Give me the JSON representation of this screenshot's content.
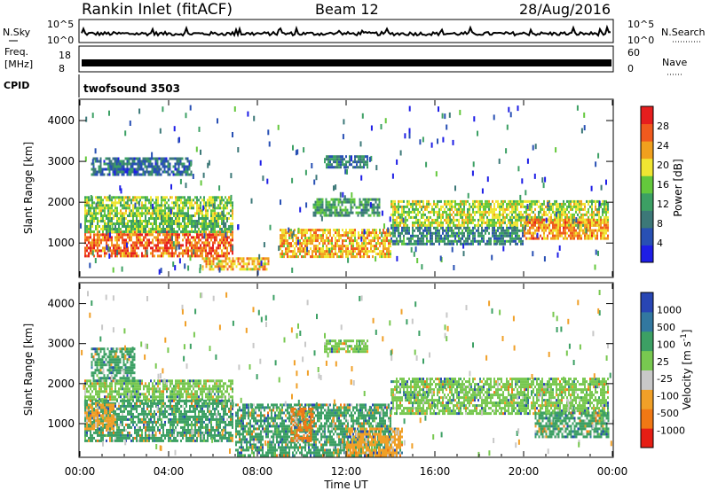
{
  "header": {
    "title": "Rankin Inlet (fitACF)",
    "beam": "Beam 12",
    "date": "28/Aug/2016"
  },
  "strip": {
    "nsky_label": "N.Sky",
    "nsky_ticks": [
      "10^5",
      "10^0"
    ],
    "nsearch_label": "N.Search",
    "freq_label_line1": "Freq.",
    "freq_label_line2": "[MHz]",
    "freq_ticks": [
      "18",
      "8"
    ],
    "nave_label": "Nave",
    "nave_ticks": [
      "60",
      "0"
    ],
    "cpid_label": "CPID",
    "cpid_text": "twofsound 3503"
  },
  "x_axis": {
    "label": "Time UT",
    "ticks": [
      "00:00",
      "04:00",
      "08:00",
      "12:00",
      "16:00",
      "20:00",
      "00:00"
    ]
  },
  "colors": {
    "power_scale": [
      "#1e1ee6",
      "#2850b4",
      "#3c7878",
      "#3ca064",
      "#64c83c",
      "#f0e632",
      "#f0a01e",
      "#f05a1e",
      "#e61e1e"
    ],
    "velocity_scale": [
      "#2846b4",
      "#3278a0",
      "#3ca064",
      "#78c850",
      "#c8c8c8",
      "#f0a028",
      "#f07814",
      "#e61e14"
    ]
  },
  "chart_data": [
    {
      "type": "heatmap",
      "panel": "power",
      "xlabel": "",
      "ylabel": "Slant Range [km]",
      "y_ticks": [
        "1000",
        "2000",
        "3000",
        "4000"
      ],
      "ylim": [
        180,
        4500
      ],
      "xlim_hours": [
        0,
        24
      ],
      "colorbar_label": "Power [dB]",
      "colorbar_ticks": [
        "4",
        "8",
        "12",
        "16",
        "20",
        "24",
        "28"
      ],
      "colorbar_range": [
        0,
        32
      ],
      "bands": [
        {
          "t0": 0.2,
          "t1": 6.9,
          "r0": 650,
          "r1": 1300,
          "value": 26
        },
        {
          "t0": 0.2,
          "t1": 6.9,
          "r0": 1300,
          "r1": 1700,
          "value": 15
        },
        {
          "t0": 0.2,
          "t1": 6.9,
          "r0": 1700,
          "r1": 2150,
          "value": 17
        },
        {
          "t0": 5.5,
          "t1": 8.5,
          "r0": 350,
          "r1": 650,
          "value": 22
        },
        {
          "t0": 9.0,
          "t1": 14.0,
          "r0": 650,
          "r1": 1350,
          "value": 22
        },
        {
          "t0": 10.5,
          "t1": 13.5,
          "r0": 1700,
          "r1": 2100,
          "value": 12
        },
        {
          "t0": 11.0,
          "t1": 13.0,
          "r0": 2850,
          "r1": 3150,
          "value": 9
        },
        {
          "t0": 14.0,
          "t1": 23.8,
          "r0": 1400,
          "r1": 2050,
          "value": 18
        },
        {
          "t0": 14.0,
          "t1": 20.0,
          "r0": 1000,
          "r1": 1400,
          "value": 10
        },
        {
          "t0": 20.0,
          "t1": 23.8,
          "r0": 1100,
          "r1": 1600,
          "value": 24
        },
        {
          "t0": 0.5,
          "t1": 5.0,
          "r0": 2650,
          "r1": 3100,
          "value": 8
        }
      ]
    },
    {
      "type": "heatmap",
      "panel": "velocity",
      "xlabel": "Time UT",
      "ylabel": "Slant Range [km]",
      "y_ticks": [
        "1000",
        "2000",
        "3000",
        "4000"
      ],
      "ylim": [
        180,
        4500
      ],
      "xlim_hours": [
        0,
        24
      ],
      "colorbar_label": "Velocity [m s^-1]",
      "colorbar_ticks": [
        "1000",
        "500",
        "100",
        "25",
        "-25",
        "-100",
        "-500",
        "-1000"
      ],
      "bands": [
        {
          "t0": 0.2,
          "t1": 6.9,
          "r0": 1600,
          "r1": 2100,
          "value": 0
        },
        {
          "t0": 0.2,
          "t1": 6.9,
          "r0": 550,
          "r1": 1600,
          "value": 100
        },
        {
          "t0": 0.2,
          "t1": 1.5,
          "r0": 900,
          "r1": 1500,
          "value": -100
        },
        {
          "t0": 7.0,
          "t1": 14.0,
          "r0": 200,
          "r1": 1500,
          "value": 100
        },
        {
          "t0": 12.0,
          "t1": 14.5,
          "r0": 200,
          "r1": 900,
          "value": -100
        },
        {
          "t0": 9.5,
          "t1": 10.5,
          "r0": 600,
          "r1": 1400,
          "value": -500
        },
        {
          "t0": 11.0,
          "t1": 13.0,
          "r0": 2800,
          "r1": 3100,
          "value": 0
        },
        {
          "t0": 14.0,
          "t1": 23.8,
          "r0": 1250,
          "r1": 2150,
          "value": 0
        },
        {
          "t0": 20.5,
          "t1": 23.8,
          "r0": 650,
          "r1": 1300,
          "value": 100
        },
        {
          "t0": 0.5,
          "t1": 2.5,
          "r0": 2100,
          "r1": 2900,
          "value": 100
        }
      ]
    }
  ]
}
